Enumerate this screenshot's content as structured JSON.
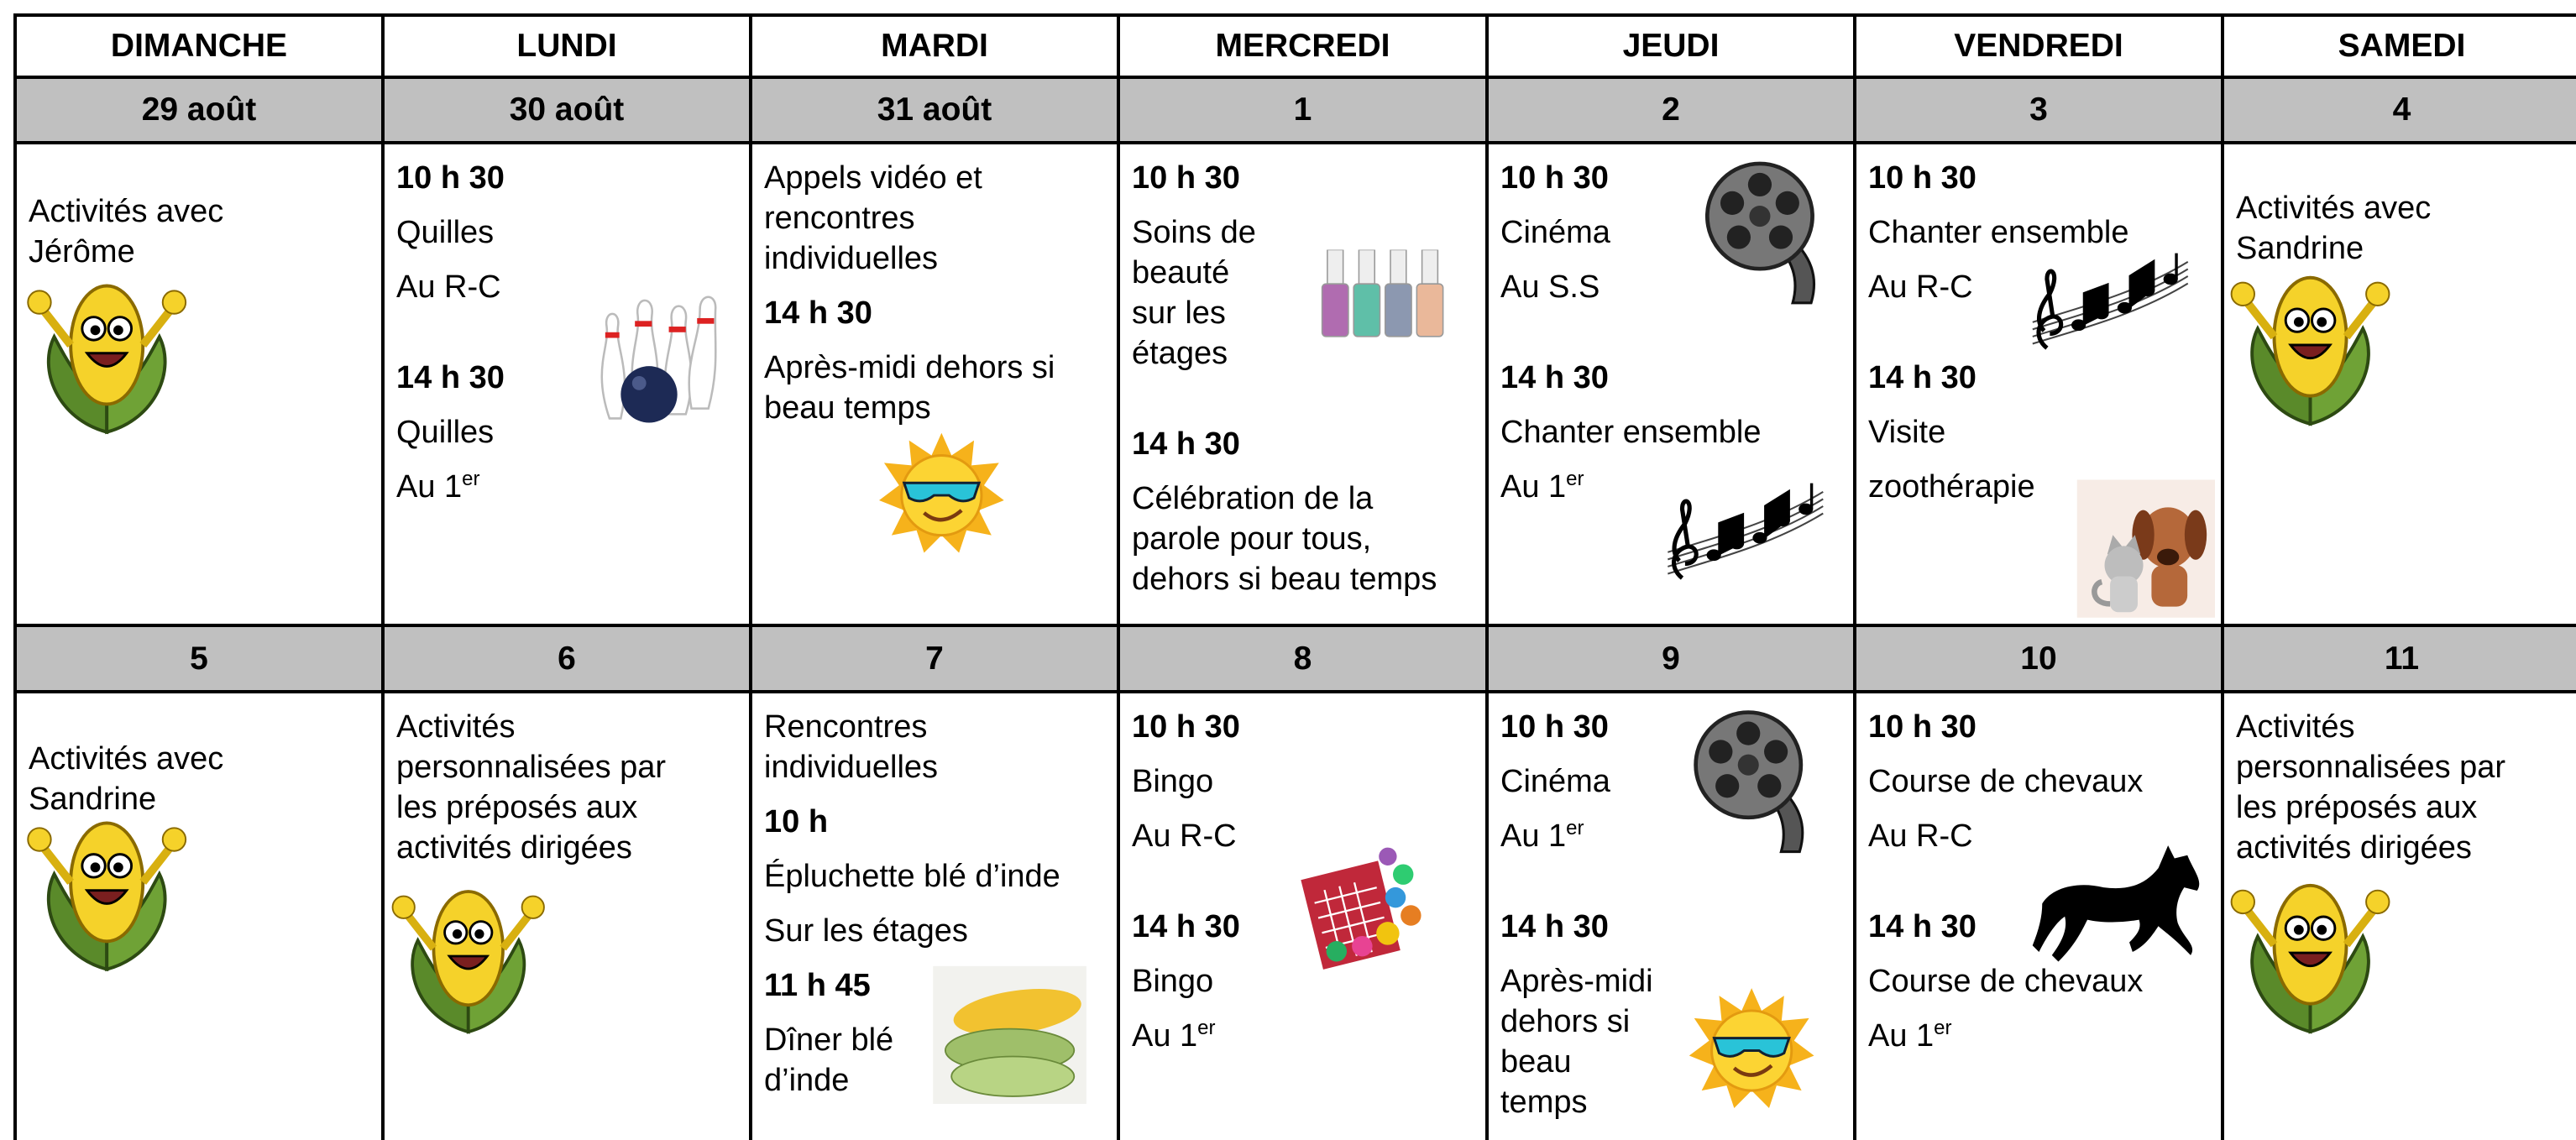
{
  "header": {
    "days": [
      "DIMANCHE",
      "LUNDI",
      "MARDI",
      "MERCREDI",
      "JEUDI",
      "VENDREDI",
      "SAMEDI"
    ]
  },
  "weeks": [
    {
      "dates": [
        "29 août",
        "30 août",
        "31 août",
        "1",
        "2",
        "3",
        "4"
      ],
      "cells": [
        [
          {
            "text": "Activités avec\nJérôme"
          }
        ],
        [
          {
            "time": "10 h 30"
          },
          {
            "text": "Quilles"
          },
          {
            "text": "Au R-C"
          },
          {
            "time": "14 h 30"
          },
          {
            "text": "Quilles"
          },
          {
            "text": "Au 1",
            "sup": "er"
          }
        ],
        [
          {
            "text": "Appels vidéo et\nrencontres\nindividuelles"
          },
          {
            "time": "14 h 30"
          },
          {
            "text": "Après-midi dehors si\nbeau temps"
          }
        ],
        [
          {
            "time": "10 h 30"
          },
          {
            "text": "Soins de\nbeauté\nsur les\nétages"
          },
          {
            "time": "14 h 30"
          },
          {
            "text": "Célébration de la\nparole pour tous,\ndehors si beau temps"
          }
        ],
        [
          {
            "time": "10 h 30"
          },
          {
            "text": "Cinéma"
          },
          {
            "text": "Au S.S"
          },
          {
            "time": "14 h 30"
          },
          {
            "text": "Chanter ensemble"
          },
          {
            "text": "Au 1",
            "sup": "er"
          }
        ],
        [
          {
            "time": "10 h 30"
          },
          {
            "text": "Chanter ensemble"
          },
          {
            "text": "Au R-C"
          },
          {
            "time": "14 h 30"
          },
          {
            "text": "Visite"
          },
          {
            "text": "zoothérapie"
          }
        ],
        [
          {
            "text": "Activités avec\nSandrine"
          }
        ]
      ]
    },
    {
      "dates": [
        "5",
        "6",
        "7",
        "8",
        "9",
        "10",
        "11"
      ],
      "cells": [
        [
          {
            "text": "Activités avec\nSandrine"
          }
        ],
        [
          {
            "text": "Activités\npersonnalisées par\nles préposés aux\nactivités dirigées"
          }
        ],
        [
          {
            "text": "Rencontres\nindividuelles"
          },
          {
            "time": "10 h"
          },
          {
            "text": "Épluchette blé d’inde"
          },
          {
            "text": "Sur les étages"
          },
          {
            "time": "11 h 45"
          },
          {
            "text": "Dîner blé\nd’inde"
          }
        ],
        [
          {
            "time": "10 h 30"
          },
          {
            "text": "Bingo"
          },
          {
            "text": "Au R-C"
          },
          {
            "time": "14 h 30"
          },
          {
            "text": "Bingo"
          },
          {
            "text": "Au 1",
            "sup": "er"
          }
        ],
        [
          {
            "time": "10 h 30"
          },
          {
            "text": "Cinéma"
          },
          {
            "text": "Au 1",
            "sup": "er"
          },
          {
            "time": "14 h 30"
          },
          {
            "text": "Après-midi\ndehors si\nbeau\ntemps"
          }
        ],
        [
          {
            "time": "10 h 30"
          },
          {
            "text": "Course de chevaux"
          },
          {
            "text": "Au R-C"
          },
          {
            "time": "14 h 30"
          },
          {
            "text": "Course de chevaux"
          },
          {
            "text": "Au 1",
            "sup": "er"
          }
        ],
        [
          {
            "text": "Activités\npersonnalisées par\nles préposés aux\nactivités dirigées"
          }
        ]
      ]
    }
  ]
}
